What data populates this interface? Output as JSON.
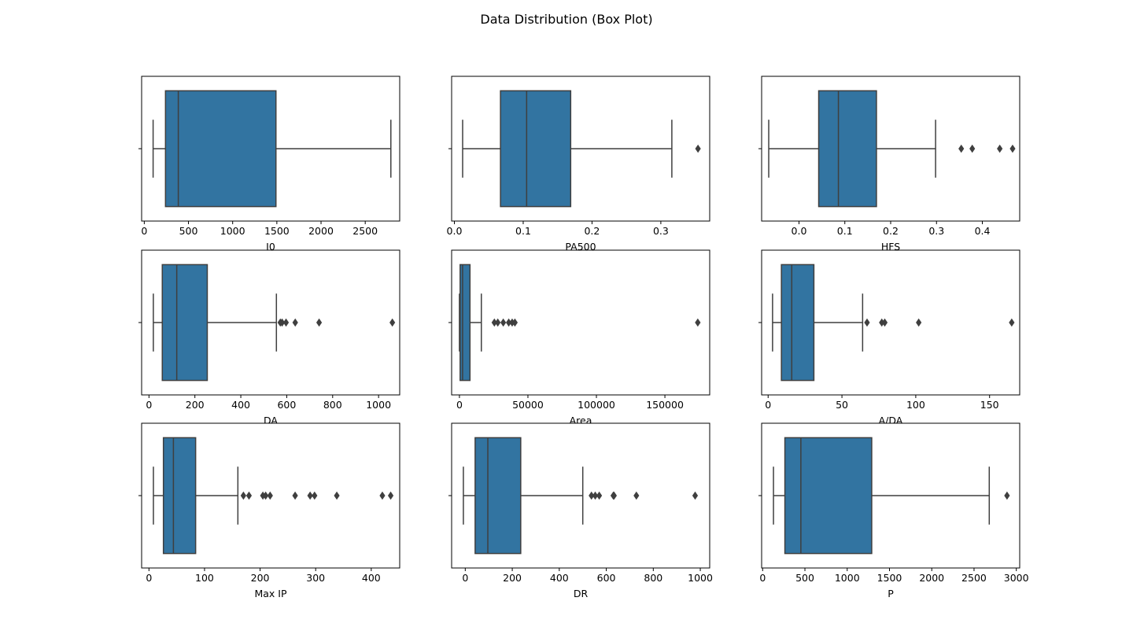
{
  "chart_data": {
    "type": "box",
    "title": "Data Distribution (Box Plot)",
    "colors": {
      "box_fill": "#3274a1",
      "line": "#3f3f3f",
      "frame": "#000000"
    },
    "panels": [
      {
        "xlabel": "I0",
        "xlim": [
          -30,
          2890
        ],
        "ticks": [
          0,
          500,
          1000,
          1500,
          2000,
          2500
        ],
        "tick_labels": [
          "0",
          "500",
          "1000",
          "1500",
          "2000",
          "2500"
        ],
        "whisker_low": 100,
        "q1": 240,
        "median": 385,
        "q3": 1490,
        "whisker_high": 2790,
        "outliers": []
      },
      {
        "xlabel": "PA500",
        "xlim": [
          -0.004,
          0.371
        ],
        "ticks": [
          0.0,
          0.1,
          0.2,
          0.3
        ],
        "tick_labels": [
          "0.0",
          "0.1",
          "0.2",
          "0.3"
        ],
        "whisker_low": 0.012,
        "q1": 0.067,
        "median": 0.105,
        "q3": 0.169,
        "whisker_high": 0.316,
        "outliers": [
          0.354
        ]
      },
      {
        "xlabel": "HFS",
        "xlim": [
          -0.0815,
          0.4815
        ],
        "ticks": [
          0.0,
          0.1,
          0.2,
          0.3,
          0.4
        ],
        "tick_labels": [
          "0.0",
          "0.1",
          "0.2",
          "0.3",
          "0.4"
        ],
        "whisker_low": -0.066,
        "q1": 0.043,
        "median": 0.086,
        "q3": 0.169,
        "whisker_high": 0.298,
        "outliers": [
          0.354,
          0.378,
          0.438,
          0.466
        ]
      },
      {
        "xlabel": "DA",
        "xlim": [
          -32,
          1092
        ],
        "ticks": [
          0,
          200,
          400,
          600,
          800,
          1000
        ],
        "tick_labels": [
          "0",
          "200",
          "400",
          "600",
          "800",
          "1000"
        ],
        "whisker_low": 19,
        "q1": 58,
        "median": 121,
        "q3": 254,
        "whisker_high": 555,
        "outliers": [
          572,
          580,
          597,
          637,
          741,
          1060
        ]
      },
      {
        "xlabel": "Area",
        "xlim": [
          -5700,
          182700
        ],
        "ticks": [
          0,
          50000,
          100000,
          150000
        ],
        "tick_labels": [
          "0",
          "50000",
          "100000",
          "150000"
        ],
        "whisker_low": 0,
        "q1": 500,
        "median": 2300,
        "q3": 7700,
        "whisker_high": 16000,
        "outliers": [
          25500,
          28000,
          32000,
          36000,
          38500,
          40500,
          174000
        ]
      },
      {
        "xlabel": "A/DA",
        "xlim": [
          -4.4,
          170.4
        ],
        "ticks": [
          0,
          50,
          100,
          150
        ],
        "tick_labels": [
          "0",
          "50",
          "100",
          "150"
        ],
        "whisker_low": 3,
        "q1": 9,
        "median": 16,
        "q3": 31,
        "whisker_high": 64,
        "outliers": [
          67,
          77,
          79,
          102,
          165
        ]
      },
      {
        "xlabel": "Max IP",
        "xlim": [
          -13.2,
          451.2
        ],
        "ticks": [
          0,
          100,
          200,
          300,
          400
        ],
        "tick_labels": [
          "0",
          "100",
          "200",
          "300",
          "400"
        ],
        "whisker_low": 8,
        "q1": 26,
        "median": 44,
        "q3": 84,
        "whisker_high": 160,
        "outliers": [
          170,
          180,
          205,
          210,
          218,
          263,
          290,
          298,
          338,
          420,
          435
        ]
      },
      {
        "xlabel": "DR",
        "xlim": [
          -58,
          1040
        ],
        "ticks": [
          0,
          200,
          400,
          600,
          800,
          1000
        ],
        "tick_labels": [
          "0",
          "200",
          "400",
          "600",
          "800",
          "1000"
        ],
        "whisker_low": -8,
        "q1": 42,
        "median": 96,
        "q3": 236,
        "whisker_high": 500,
        "outliers": [
          537,
          553,
          570,
          630,
          633,
          728,
          978
        ]
      },
      {
        "xlabel": "P",
        "xlim": [
          -12,
          3040
        ],
        "ticks": [
          0,
          500,
          1000,
          1500,
          2000,
          2500,
          3000
        ],
        "tick_labels": [
          "0",
          "500",
          "1000",
          "1500",
          "2000",
          "2500",
          "3000"
        ],
        "whisker_low": 128,
        "q1": 263,
        "median": 452,
        "q3": 1290,
        "whisker_high": 2680,
        "outliers": [
          2890
        ]
      }
    ]
  }
}
